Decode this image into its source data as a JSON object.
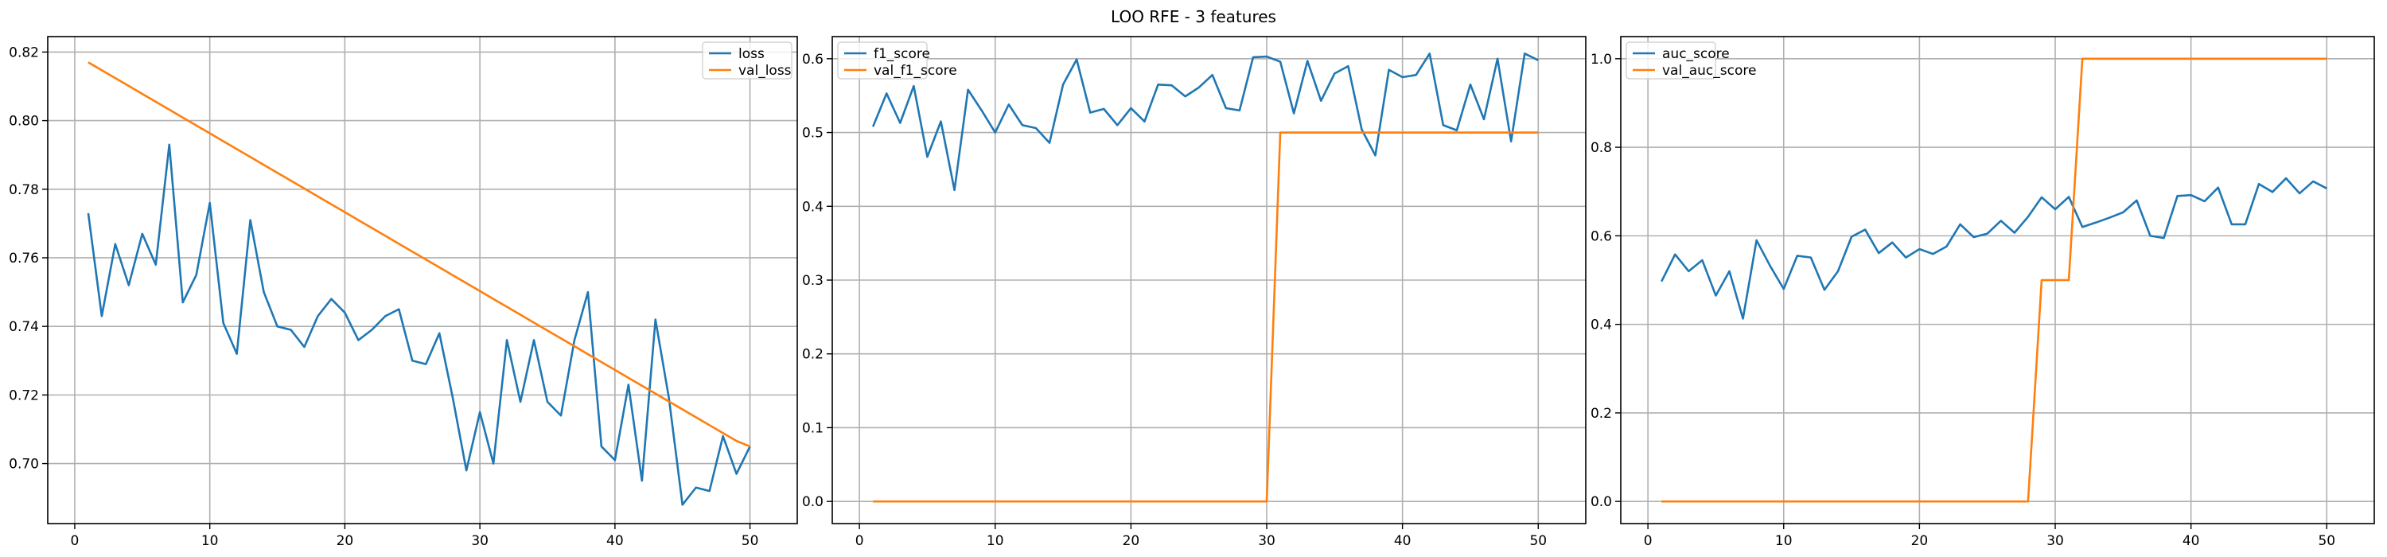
{
  "title": "LOO RFE - 3 features",
  "colors": {
    "series1": "#1f77b4",
    "series2": "#ff7f0e",
    "grid": "#b0b0b0"
  },
  "chart_data": [
    {
      "type": "line",
      "grid": true,
      "legend_placement": "top-right",
      "xlim": [
        -2,
        53.5
      ],
      "ylim": [
        0.6825,
        0.8245
      ],
      "xticks": [
        0,
        10,
        20,
        30,
        40,
        50
      ],
      "yticks": [
        0.7,
        0.72,
        0.74,
        0.76,
        0.78,
        0.8,
        0.82
      ],
      "ytick_labels": [
        "0.70",
        "0.72",
        "0.74",
        "0.76",
        "0.78",
        "0.80",
        "0.82"
      ],
      "x": [
        1,
        2,
        3,
        4,
        5,
        6,
        7,
        8,
        9,
        10,
        11,
        12,
        13,
        14,
        15,
        16,
        17,
        18,
        19,
        20,
        21,
        22,
        23,
        24,
        25,
        26,
        27,
        28,
        29,
        30,
        31,
        32,
        33,
        34,
        35,
        36,
        37,
        38,
        39,
        40,
        41,
        42,
        43,
        44,
        45,
        46,
        47,
        48,
        49,
        50
      ],
      "series": [
        {
          "name": "loss",
          "color": "#1f77b4",
          "values": [
            0.773,
            0.743,
            0.764,
            0.752,
            0.767,
            0.758,
            0.793,
            0.747,
            0.755,
            0.776,
            0.741,
            0.732,
            0.771,
            0.75,
            0.74,
            0.739,
            0.734,
            0.743,
            0.748,
            0.744,
            0.736,
            0.739,
            0.743,
            0.745,
            0.73,
            0.729,
            0.738,
            0.719,
            0.698,
            0.715,
            0.7,
            0.736,
            0.718,
            0.736,
            0.718,
            0.714,
            0.736,
            0.75,
            0.705,
            0.701,
            0.723,
            0.695,
            0.742,
            0.719,
            0.688,
            0.693,
            0.692,
            0.708,
            0.697,
            0.705
          ]
        },
        {
          "name": "val_loss",
          "color": "#ff7f0e",
          "values": [
            0.817,
            0.8147,
            0.8124,
            0.8101,
            0.8078,
            0.8055,
            0.8032,
            0.8009,
            0.7986,
            0.7963,
            0.794,
            0.7917,
            0.7894,
            0.7871,
            0.7848,
            0.7825,
            0.7802,
            0.7779,
            0.7756,
            0.7733,
            0.771,
            0.7687,
            0.7664,
            0.7641,
            0.7618,
            0.7595,
            0.7572,
            0.7549,
            0.7526,
            0.7503,
            0.748,
            0.7457,
            0.7434,
            0.7411,
            0.7388,
            0.7365,
            0.7342,
            0.7319,
            0.7296,
            0.7273,
            0.725,
            0.7227,
            0.7204,
            0.7181,
            0.7158,
            0.7135,
            0.7112,
            0.7089,
            0.7066,
            0.705
          ]
        }
      ]
    },
    {
      "type": "line",
      "grid": true,
      "legend_placement": "top-left",
      "xlim": [
        -2,
        53.5
      ],
      "ylim": [
        -0.03,
        0.63
      ],
      "xticks": [
        0,
        10,
        20,
        30,
        40,
        50
      ],
      "yticks": [
        0.0,
        0.1,
        0.2,
        0.3,
        0.4,
        0.5,
        0.6
      ],
      "ytick_labels": [
        "0.0",
        "0.1",
        "0.2",
        "0.3",
        "0.4",
        "0.5",
        "0.6"
      ],
      "x": [
        1,
        2,
        3,
        4,
        5,
        6,
        7,
        8,
        9,
        10,
        11,
        12,
        13,
        14,
        15,
        16,
        17,
        18,
        19,
        20,
        21,
        22,
        23,
        24,
        25,
        26,
        27,
        28,
        29,
        30,
        31,
        32,
        33,
        34,
        35,
        36,
        37,
        38,
        39,
        40,
        41,
        42,
        43,
        44,
        45,
        46,
        47,
        48,
        49,
        50
      ],
      "series": [
        {
          "name": "f1_score",
          "color": "#1f77b4",
          "values": [
            0.508,
            0.553,
            0.513,
            0.563,
            0.467,
            0.515,
            0.422,
            0.558,
            0.53,
            0.5,
            0.538,
            0.51,
            0.506,
            0.486,
            0.565,
            0.599,
            0.527,
            0.532,
            0.51,
            0.533,
            0.515,
            0.565,
            0.564,
            0.549,
            0.561,
            0.578,
            0.533,
            0.53,
            0.602,
            0.603,
            0.596,
            0.526,
            0.597,
            0.543,
            0.58,
            0.59,
            0.504,
            0.469,
            0.585,
            0.575,
            0.578,
            0.607,
            0.51,
            0.503,
            0.565,
            0.518,
            0.6,
            0.488,
            0.607,
            0.598
          ]
        },
        {
          "name": "val_f1_score",
          "color": "#ff7f0e",
          "values": [
            0,
            0,
            0,
            0,
            0,
            0,
            0,
            0,
            0,
            0,
            0,
            0,
            0,
            0,
            0,
            0,
            0,
            0,
            0,
            0,
            0,
            0,
            0,
            0,
            0,
            0,
            0,
            0,
            0,
            0,
            0.5,
            0.5,
            0.5,
            0.5,
            0.5,
            0.5,
            0.5,
            0.5,
            0.5,
            0.5,
            0.5,
            0.5,
            0.5,
            0.5,
            0.5,
            0.5,
            0.5,
            0.5,
            0.5,
            0.5
          ]
        }
      ]
    },
    {
      "type": "line",
      "grid": true,
      "legend_placement": "top-left",
      "xlim": [
        -2,
        53.5
      ],
      "ylim": [
        -0.05,
        1.05
      ],
      "xticks": [
        0,
        10,
        20,
        30,
        40,
        50
      ],
      "yticks": [
        0.0,
        0.2,
        0.4,
        0.6,
        0.8,
        1.0
      ],
      "ytick_labels": [
        "0.0",
        "0.2",
        "0.4",
        "0.6",
        "0.8",
        "1.0"
      ],
      "x": [
        1,
        2,
        3,
        4,
        5,
        6,
        7,
        8,
        9,
        10,
        11,
        12,
        13,
        14,
        15,
        16,
        17,
        18,
        19,
        20,
        21,
        22,
        23,
        24,
        25,
        26,
        27,
        28,
        29,
        30,
        31,
        32,
        33,
        34,
        35,
        36,
        37,
        38,
        39,
        40,
        41,
        42,
        43,
        44,
        45,
        46,
        47,
        48,
        49,
        50
      ],
      "series": [
        {
          "name": "auc_score",
          "color": "#1f77b4",
          "values": [
            0.497,
            0.558,
            0.52,
            0.545,
            0.465,
            0.52,
            0.413,
            0.59,
            0.532,
            0.48,
            0.555,
            0.551,
            0.478,
            0.52,
            0.598,
            0.614,
            0.561,
            0.585,
            0.551,
            0.57,
            0.559,
            0.576,
            0.626,
            0.597,
            0.605,
            0.634,
            0.607,
            0.643,
            0.687,
            0.66,
            0.688,
            0.62,
            0.63,
            0.641,
            0.653,
            0.68,
            0.6,
            0.595,
            0.69,
            0.692,
            0.678,
            0.709,
            0.626,
            0.626,
            0.717,
            0.699,
            0.73,
            0.696,
            0.723,
            0.707
          ]
        },
        {
          "name": "val_auc_score",
          "color": "#ff7f0e",
          "values": [
            0,
            0,
            0,
            0,
            0,
            0,
            0,
            0,
            0,
            0,
            0,
            0,
            0,
            0,
            0,
            0,
            0,
            0,
            0,
            0,
            0,
            0,
            0,
            0,
            0,
            0,
            0,
            0,
            0.5,
            0.5,
            0.5,
            1.0,
            1.0,
            1.0,
            1.0,
            1.0,
            1.0,
            1.0,
            1.0,
            1.0,
            1.0,
            1.0,
            1.0,
            1.0,
            1.0,
            1.0,
            1.0,
            1.0,
            1.0,
            1.0
          ]
        }
      ]
    }
  ]
}
